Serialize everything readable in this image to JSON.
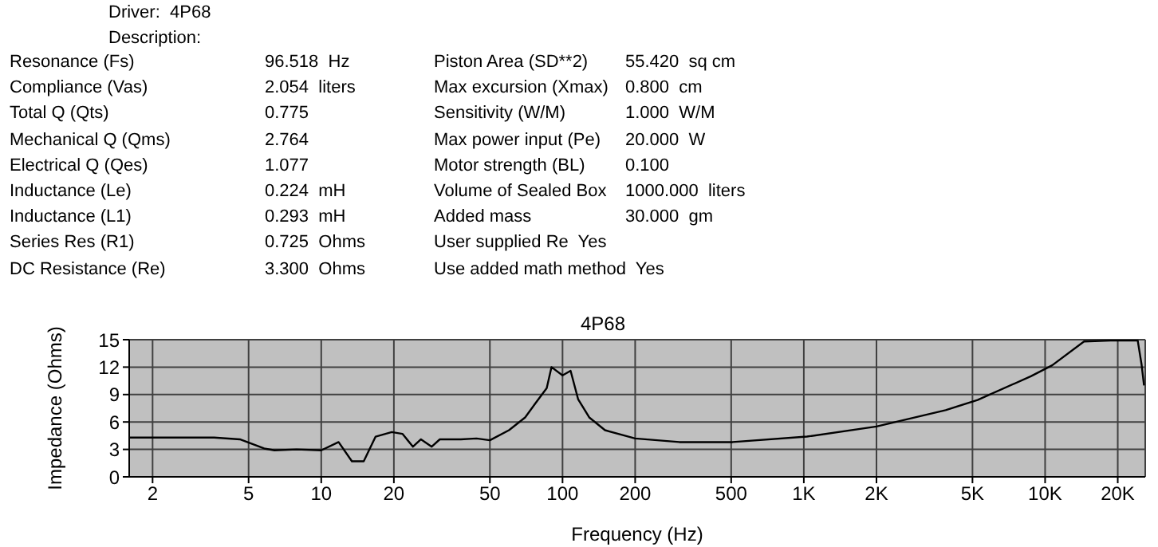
{
  "chart_data": {
    "type": "line",
    "title": "4P68",
    "xlabel": "Frequency (Hz)",
    "ylabel": "Impedance (Ohms)",
    "log": "x",
    "grid": true,
    "annotations": [
      "Driver:  4P68",
      "Description:",
      "Resonance (Fs)",
      "96.518  Hz",
      "Compliance (Vas)",
      "2.054  liters",
      "Total Q (Qts)",
      "0.775",
      "Mechanical Q (Qms)",
      "2.764",
      "Electrical Q (Qes)",
      "1.077",
      "Inductance (Le)",
      "0.224  mH",
      "Inductance (L1)",
      "0.293  mH",
      "Series Res (R1)",
      "0.725  Ohms",
      "DC Resistance (Re)",
      "3.300  Ohms",
      "Piston Area (SD**2)",
      "55.420  sq cm",
      "Max excursion (Xmax)",
      "0.800  cm",
      "Sensitivity (W/M)",
      "1.000  W/M",
      "Max power input (Pe)",
      "20.000  W",
      "Motor strength (BL)",
      "0.100",
      "Volume of Sealed Box",
      "1000.000  liters",
      "Added mass",
      "30.000  gm",
      "User supplied Re  Yes",
      "Use added math method  Yes"
    ],
    "xlim": [
      1.6,
      26000
    ],
    "xticks": [
      2,
      5,
      10,
      20,
      50,
      100,
      200,
      500,
      {
        "value": 1000,
        "label": "1K"
      },
      {
        "value": 2000,
        "label": "2K"
      },
      {
        "value": 5000,
        "label": "5K"
      },
      {
        "value": 10000,
        "label": "10K"
      },
      {
        "value": 20000,
        "label": "20K"
      }
    ],
    "ylim": [
      0,
      15
    ],
    "yticks": [
      0,
      3,
      6,
      9,
      12,
      15
    ],
    "x": [
      1.6,
      3.6,
      4.6,
      5.8,
      6.4,
      7.9,
      10,
      11.8,
      13.4,
      15,
      16.8,
      19.6,
      21.7,
      24,
      25.9,
      28.7,
      31,
      37.9,
      44,
      50,
      60,
      70,
      77,
      86,
      90,
      100,
      108,
      116,
      129,
      150,
      200,
      305,
      507,
      1030,
      2000,
      3870,
      5250,
      8730,
      10700,
      14500,
      18700,
      24200,
      25100,
      25700
    ],
    "series": [
      {
        "color": "#000000",
        "values": [
          4.3,
          4.3,
          4.1,
          3.1,
          2.9,
          3.0,
          2.9,
          3.8,
          1.7,
          1.7,
          4.4,
          4.9,
          4.7,
          3.3,
          4.1,
          3.3,
          4.1,
          4.1,
          4.2,
          4.0,
          5.1,
          6.5,
          8.0,
          9.7,
          12.0,
          11.1,
          11.6,
          8.5,
          6.5,
          5.1,
          4.2,
          3.8,
          3.8,
          4.4,
          5.5,
          7.3,
          8.4,
          11.0,
          12.2,
          14.8,
          14.9,
          14.9,
          12.3,
          10.0
        ]
      }
    ]
  }
}
